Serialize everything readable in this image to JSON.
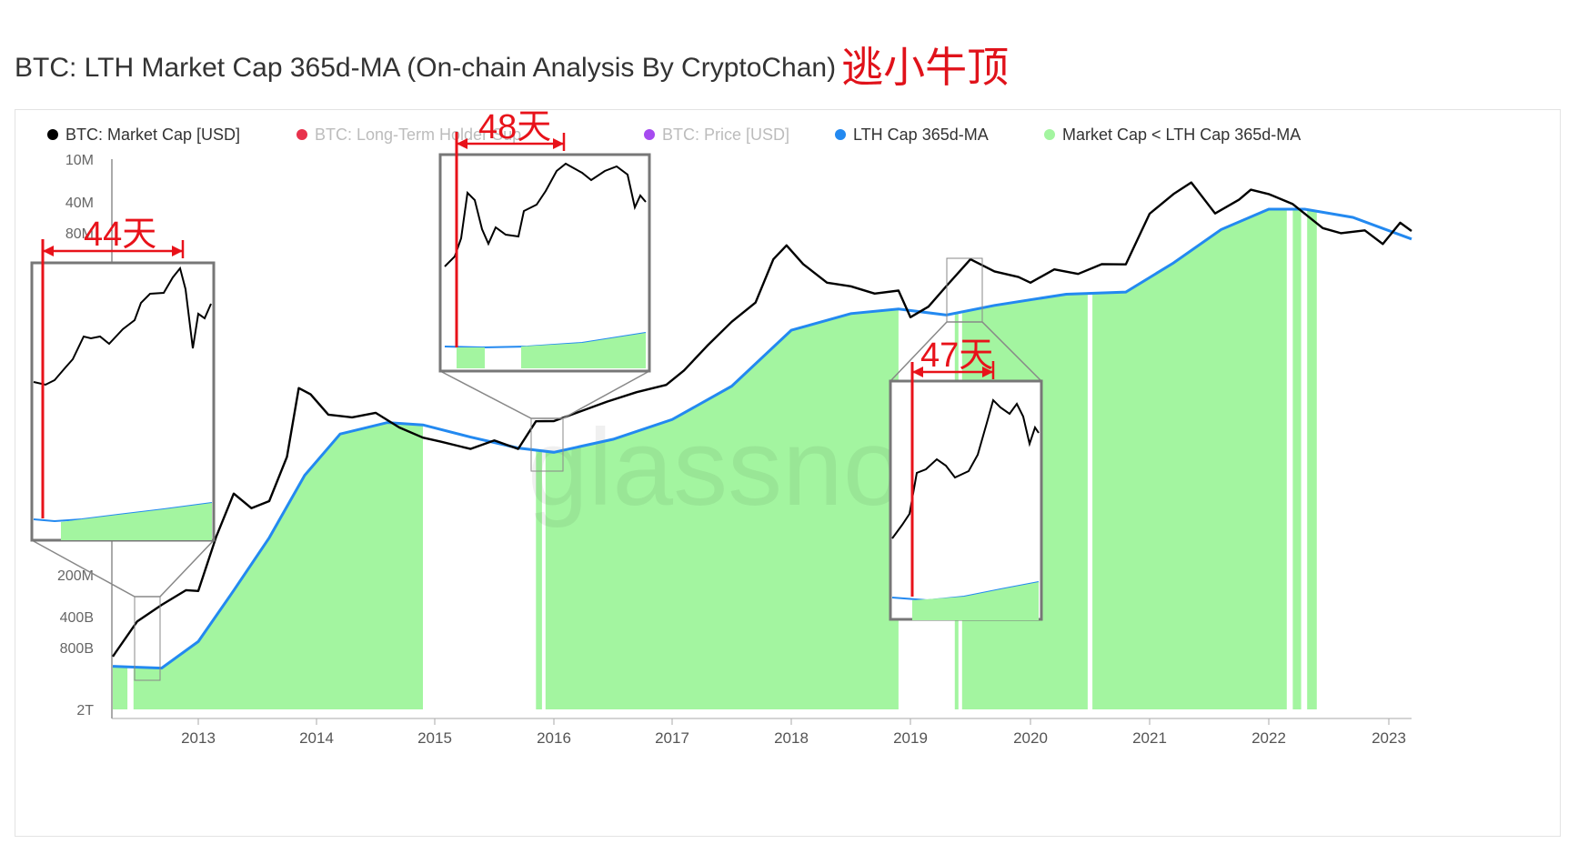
{
  "title": {
    "main": "BTC: LTH Market Cap 365d-MA (On-chain Analysis By CryptoChan)",
    "highlight": "逃小牛顶"
  },
  "legend": [
    {
      "label": "BTC: Market Cap [USD]",
      "color": "#000000",
      "faded": false
    },
    {
      "label": "BTC: Long-Term Holder Sup",
      "color": "#e8324c",
      "faded": true
    },
    {
      "label": "BTC: Price [USD]",
      "color": "#a64bf0",
      "faded": true
    },
    {
      "label": "LTH Cap 365d-MA",
      "color": "#2389f0",
      "faded": false
    },
    {
      "label": "Market Cap < LTH Cap 365d-MA",
      "color": "#a3f5a0",
      "faded": false
    }
  ],
  "colors": {
    "market_cap": "#000000",
    "lth_ma": "#2389f0",
    "fill": "#a3f5a0",
    "annotation": "#e8121a",
    "inset_border": "#888888"
  },
  "annotations": [
    {
      "label": "44天",
      "days": 44
    },
    {
      "label": "48天",
      "days": 48
    },
    {
      "label": "47天",
      "days": 47
    }
  ],
  "watermark": "glassnode",
  "chart_data": {
    "type": "line",
    "title": "BTC: LTH Market Cap 365d-MA (On-chain Analysis By CryptoChan)",
    "y_scale": "log",
    "y_ticks": [
      "10M",
      "40M",
      "80M",
      "200M",
      "400B",
      "800B",
      "2T"
    ],
    "x_ticks": [
      "2013",
      "2014",
      "2015",
      "2016",
      "2017",
      "2018",
      "2019",
      "2020",
      "2021",
      "2022",
      "2023"
    ],
    "series": [
      {
        "name": "BTC: Market Cap [USD]",
        "x": [
          2012.3,
          2012.5,
          2012.7,
          2012.9,
          2013.0,
          2013.15,
          2013.3,
          2013.45,
          2013.6,
          2013.75,
          2013.85,
          2013.95,
          2014.1,
          2014.3,
          2014.5,
          2014.7,
          2014.9,
          2015.05,
          2015.3,
          2015.5,
          2015.7,
          2015.85,
          2016.0,
          2016.2,
          2016.45,
          2016.7,
          2016.95,
          2017.1,
          2017.3,
          2017.5,
          2017.7,
          2017.85,
          2017.96,
          2018.1,
          2018.3,
          2018.5,
          2018.7,
          2018.9,
          2019.0,
          2019.15,
          2019.3,
          2019.5,
          2019.7,
          2019.9,
          2020.0,
          2020.2,
          2020.4,
          2020.6,
          2020.8,
          2021.0,
          2021.2,
          2021.35,
          2021.55,
          2021.75,
          2021.85,
          2022.0,
          2022.2,
          2022.45,
          2022.6,
          2022.8,
          2022.95,
          2023.1,
          2023.2
        ]
      },
      {
        "name": "LTH Cap 365d-MA"
      },
      {
        "name": "Market Cap < LTH Cap 365d-MA"
      }
    ]
  }
}
